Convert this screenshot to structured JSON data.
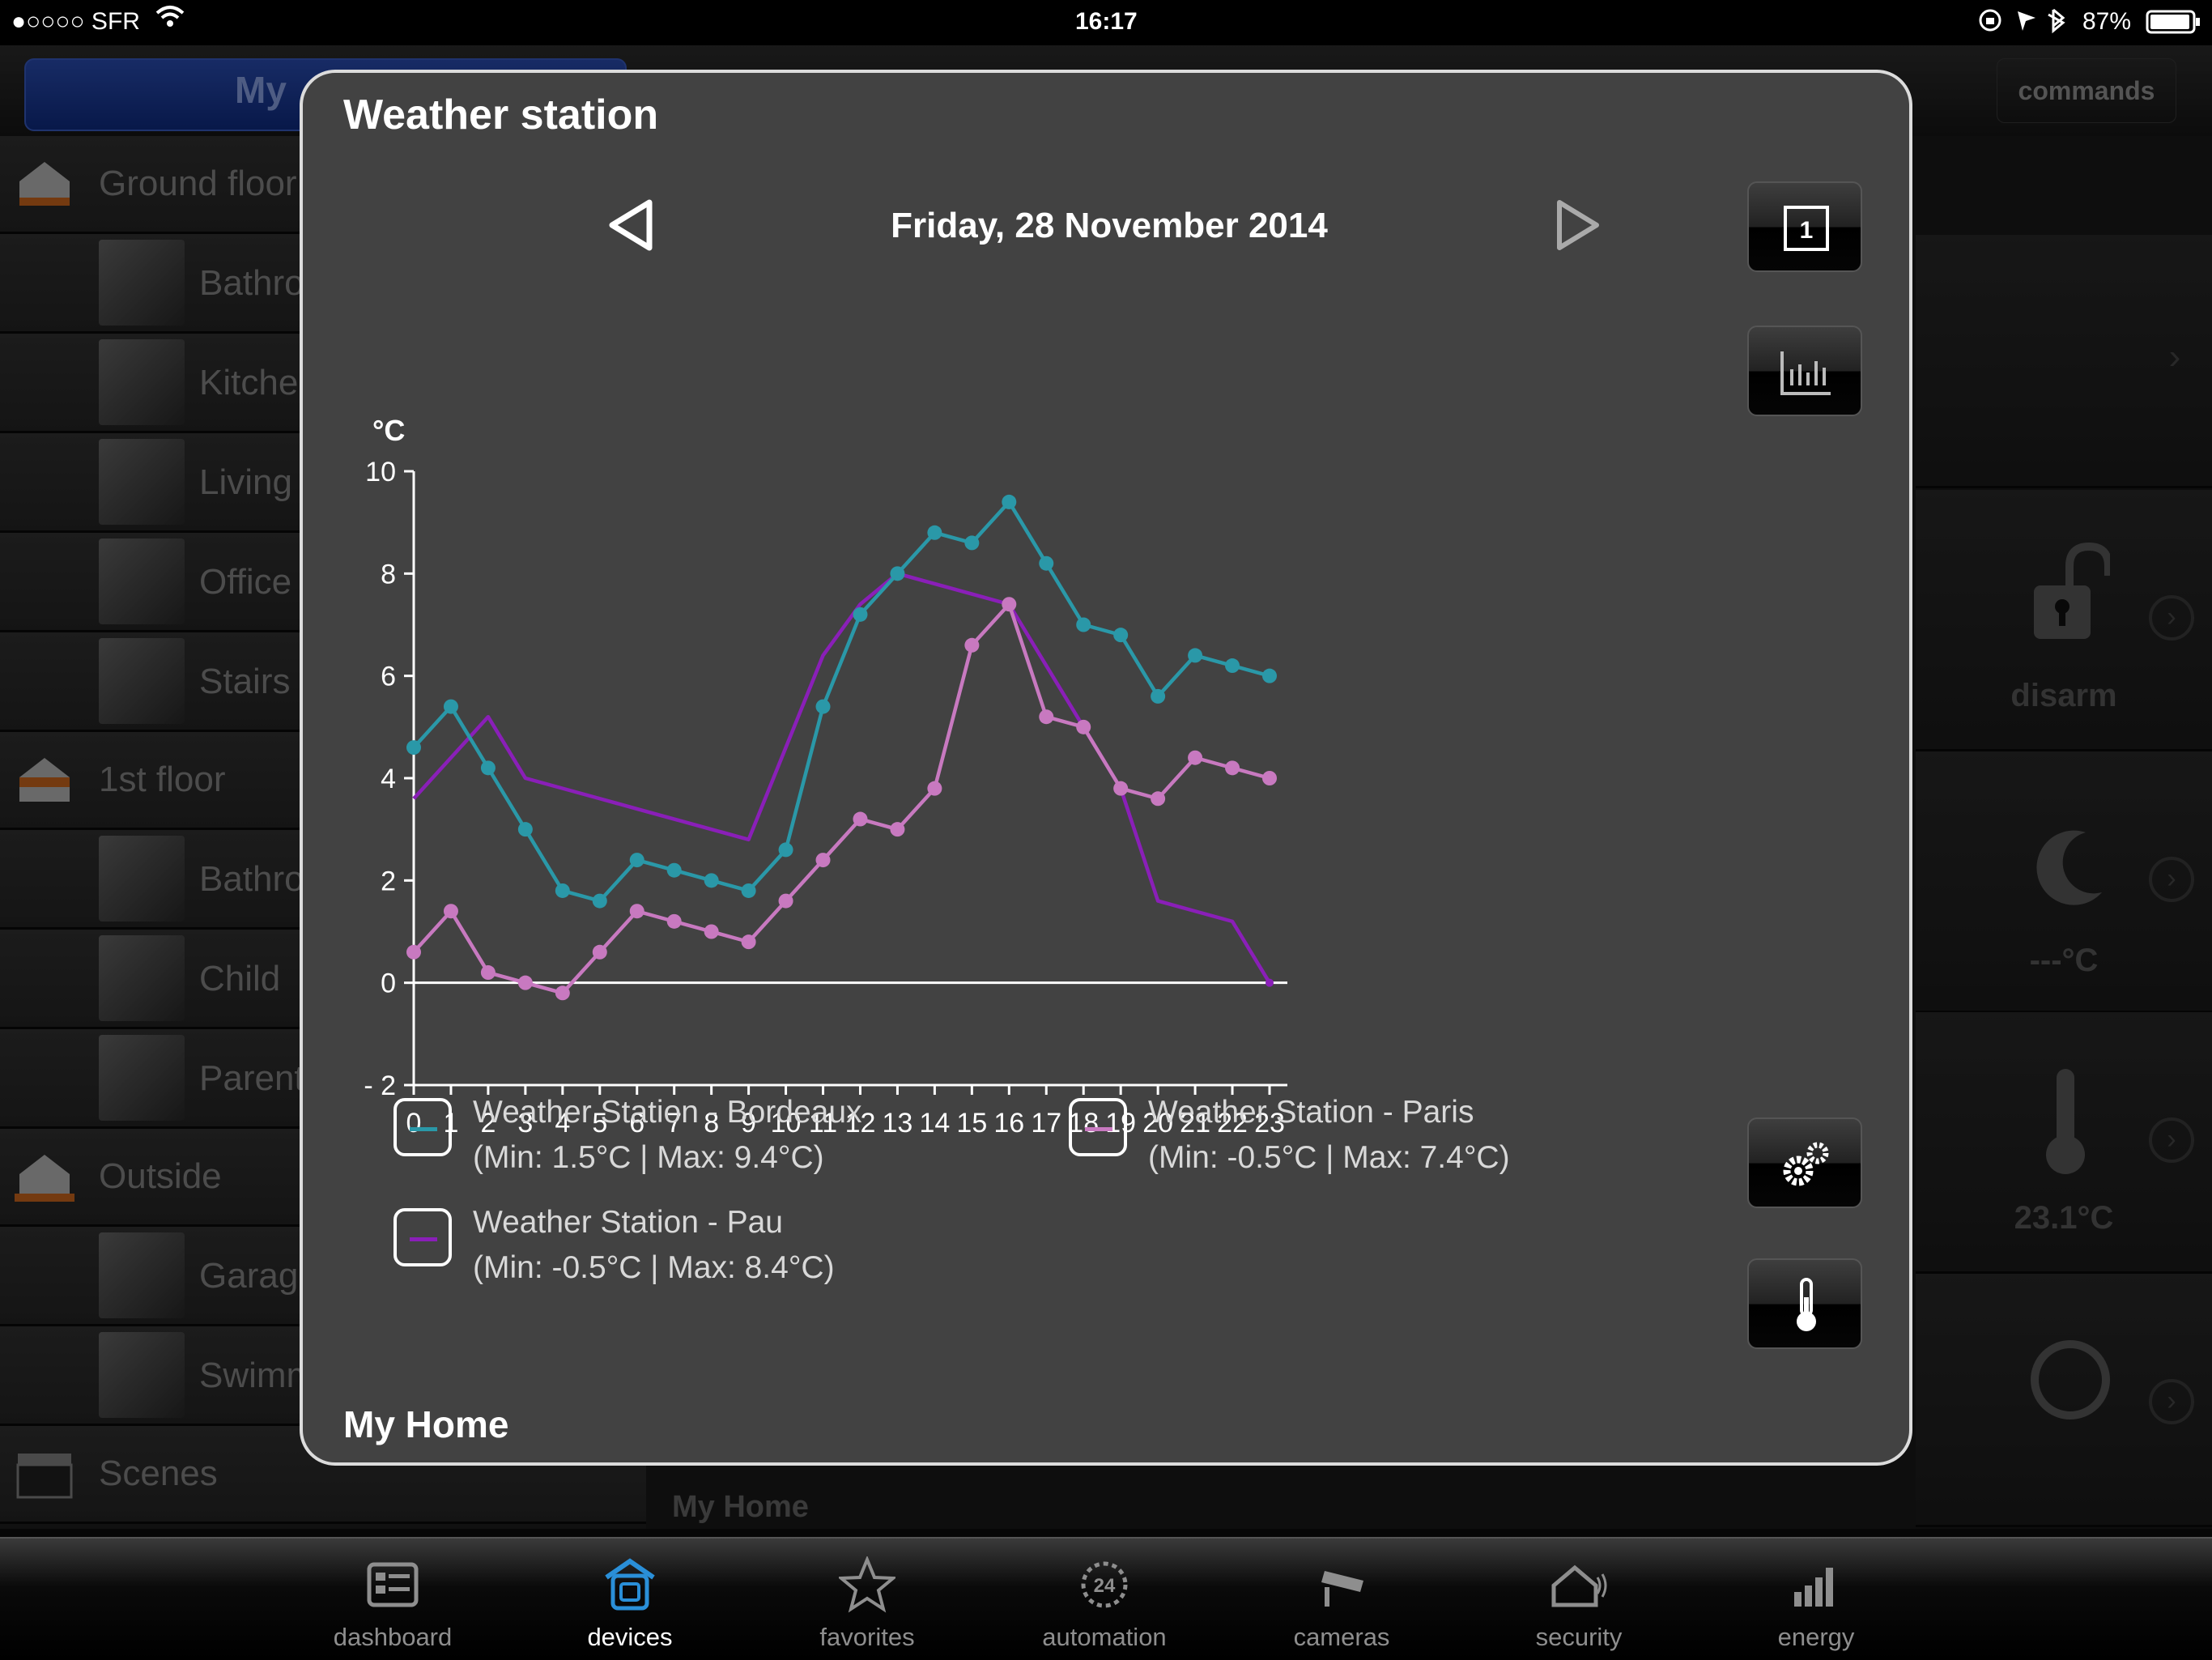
{
  "status_bar": {
    "carrier": "●○○○○ SFR",
    "time": "16:17",
    "battery": "87%"
  },
  "background": {
    "header_tab": "My",
    "commands_label": "commands",
    "floors": [
      {
        "label": "Ground floor",
        "rooms": [
          "Bathroom",
          "Kitchen",
          "Living",
          "Office",
          "Stairs"
        ]
      },
      {
        "label": "1st floor",
        "rooms": [
          "Bathroom",
          "Child",
          "Parents"
        ]
      },
      {
        "label": "Outside",
        "rooms": [
          "Garage",
          "Swimming"
        ]
      }
    ],
    "scenes_label": "Scenes",
    "right_panel": {
      "alarm_label": "disarm",
      "night_temp": "---°C",
      "temperature": "23.1°C"
    },
    "footer_label": "My Home"
  },
  "modal": {
    "title": "Weather station",
    "date": "Friday, 28 November 2014",
    "footer": "My Home",
    "period_button_label": "1"
  },
  "chart_data": {
    "type": "line",
    "ylabel": "°C",
    "ylim": [
      -2,
      10
    ],
    "yticks": [
      10,
      8,
      6,
      4,
      2,
      0,
      -2
    ],
    "ytick_labels": [
      "10",
      "8",
      "6",
      "4",
      "2",
      "0",
      "- 2"
    ],
    "x": [
      0,
      1,
      2,
      3,
      4,
      5,
      6,
      7,
      8,
      9,
      10,
      11,
      12,
      13,
      14,
      15,
      16,
      17,
      18,
      19,
      20,
      21,
      22,
      23
    ],
    "series": [
      {
        "name": "Weather Station - Bordeaux",
        "range_label": "(Min: 1.5°C | Max: 9.4°C)",
        "color": "#2a98a8",
        "markers": true,
        "values": [
          4.6,
          5.4,
          4.2,
          3.0,
          1.8,
          1.6,
          2.4,
          2.2,
          2.0,
          1.8,
          2.6,
          5.4,
          7.2,
          8.0,
          8.8,
          8.6,
          9.4,
          8.2,
          7.0,
          6.8,
          5.6,
          6.4,
          6.2,
          6.0
        ]
      },
      {
        "name": "Weather Station - Paris",
        "range_label": "(Min: -0.5°C | Max: 7.4°C)",
        "color": "#c879c0",
        "markers": true,
        "values": [
          0.6,
          1.4,
          0.2,
          0.0,
          -0.2,
          0.6,
          1.4,
          1.2,
          1.0,
          0.8,
          1.6,
          2.4,
          3.2,
          3.0,
          3.8,
          6.6,
          7.4,
          5.2,
          5.0,
          3.8,
          3.6,
          4.4,
          4.2,
          4.0
        ]
      },
      {
        "name": "Weather Station - Pau",
        "range_label": "(Min: -0.5°C | Max: 8.4°C)",
        "color": "#8a1fb8",
        "markers": false,
        "values": [
          3.6,
          4.4,
          5.2,
          4.0,
          3.8,
          3.6,
          3.4,
          3.2,
          3.0,
          2.8,
          4.6,
          6.4,
          7.4,
          8.0,
          7.8,
          7.6,
          7.4,
          6.2,
          5.0,
          3.8,
          1.6,
          1.4,
          1.2,
          0.0
        ]
      }
    ],
    "grid": false,
    "legend_position": "bottom"
  },
  "tabs": [
    {
      "label": "dashboard",
      "icon": "dashboard-icon",
      "active": false
    },
    {
      "label": "devices",
      "icon": "devices-icon",
      "active": true
    },
    {
      "label": "favorites",
      "icon": "star-icon",
      "active": false
    },
    {
      "label": "automation",
      "icon": "automation-icon",
      "active": false
    },
    {
      "label": "cameras",
      "icon": "camera-icon",
      "active": false
    },
    {
      "label": "security",
      "icon": "security-icon",
      "active": false
    },
    {
      "label": "energy",
      "icon": "energy-icon",
      "active": false
    }
  ],
  "colors": {
    "accent": "#2a8fd8",
    "modal_bg": "#424242"
  }
}
